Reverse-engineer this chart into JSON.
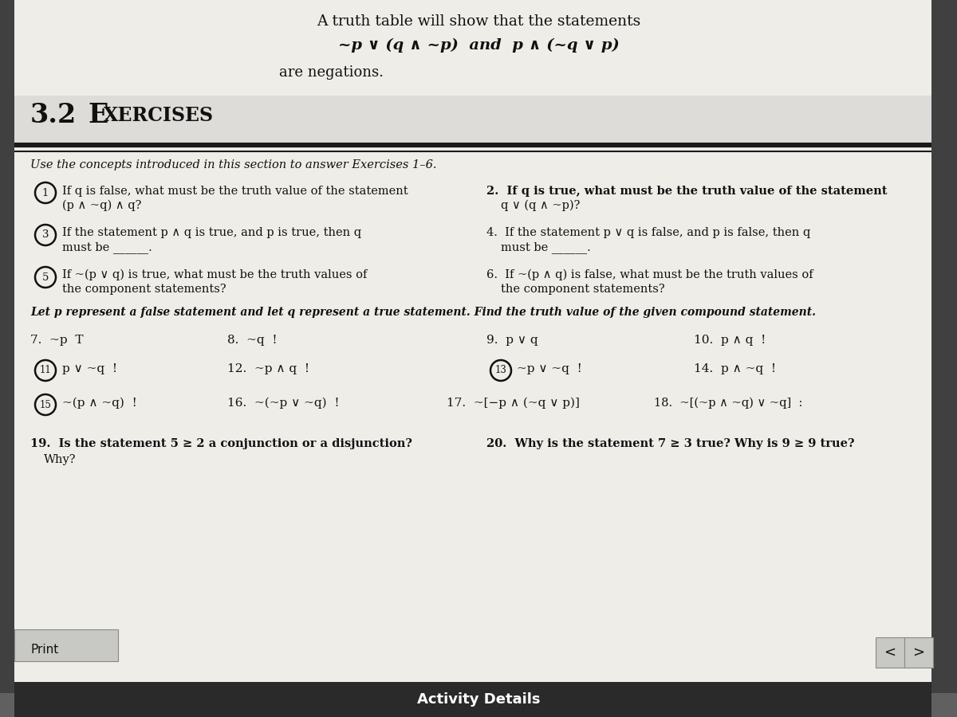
{
  "bg_outer": "#5a5a5a",
  "bg_page": "#e8e8e4",
  "bg_section_header": "#d0d0cc",
  "text_dark": "#111111",
  "title_top": "A truth table will show that the statements",
  "title_formula": "~p ∨ (q ∧ ~p)  and  p ∧ (~q ∨ p)",
  "title_negations": "are negations.",
  "section": "3.2",
  "exercises": "E",
  "xercises": "XERCISES",
  "intro": "Use the concepts introduced in this section to answer Exercises 1–6.",
  "q1a": "If q is false, what must be the truth value of the statement",
  "q1b": "(p ∧ ~q) ∧ q?",
  "q2a": "2.  If q is true, what must be the truth value of the statement",
  "q2b": "q ∨ (q ∧ ~p)?",
  "q3a": "If the statement p ∧ q is true, and p is true, then q",
  "q3b": "must be ______.",
  "q4a": "4.  If the statement p ∨ q is false, and p is false, then q",
  "q4b": "must be ______.",
  "q5a": "If ~(p ∨ q) is true, what must be the truth values of",
  "q5b": "the component statements?",
  "q6a": "6.  If ~(p ∧ q) is false, what must be the truth values of",
  "q6b": "the component statements?",
  "let_p": "Let p represent a false statement and let q represent a true statement. Find the truth value of the given compound statement.",
  "q7": "7.  ~p  T",
  "q8": "8.  ~q  !",
  "q9": "9.  p ∨ q",
  "q10": "10.  p ∧ q  !",
  "q11": "p ∨ ~q  !",
  "q12": "12.  ~p ∧ q  !",
  "q13": "~p ∨ ~q  !",
  "q14": "14.  p ∧ ~q  !",
  "q15": "~(p ∧ ~q)  !",
  "q16": "16.  ~(~p ∨ ~q)  !",
  "q17": "17.  ~[−p ∧ (~q ∨ p)]",
  "q18": "18.  ~[(~p ∧ ~q) ∨ ~q]  :",
  "q19a": "19.  Is the statement 5 ≥ 2 a conjunction or a disjunction?",
  "q19b": "Why?",
  "q20": "20.  Why is the statement 7 ≥ 3 true? Why is 9 ≥ 9 true?",
  "print_label": "Print",
  "activity": "Activity Details"
}
